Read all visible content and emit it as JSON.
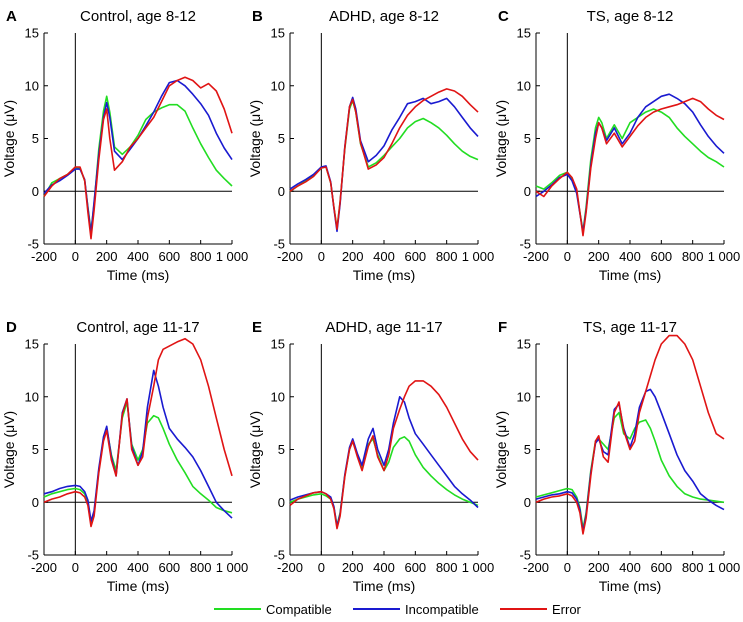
{
  "colors": {
    "Compatible": "#22dd22",
    "Incompatible": "#1a1ad0",
    "Error": "#e01414"
  },
  "legend": [
    {
      "label": "Compatible",
      "color": "#22dd22"
    },
    {
      "label": "Incompatible",
      "color": "#1a1ad0"
    },
    {
      "label": "Error",
      "color": "#e01414"
    }
  ],
  "chart_data": [
    {
      "type": "line",
      "letter": "A",
      "title": "Control, age 8-12",
      "xlabel": "Time (ms)",
      "ylabel": "Voltage (μV)",
      "xlim": [
        -200,
        1000
      ],
      "ylim": [
        -5,
        15
      ],
      "xticks": [
        "-200",
        "0",
        "200",
        "400",
        "600",
        "800",
        "1 000"
      ],
      "yticks": [
        "-5",
        "0",
        "5",
        "10",
        "15"
      ],
      "x": [
        -200,
        -150,
        -100,
        -50,
        0,
        30,
        60,
        80,
        100,
        120,
        150,
        180,
        200,
        220,
        250,
        300,
        350,
        400,
        450,
        500,
        550,
        600,
        650,
        700,
        750,
        800,
        850,
        900,
        950,
        1000
      ],
      "series": [
        {
          "name": "Compatible",
          "values": [
            -0.5,
            0.8,
            1.2,
            1.6,
            2.2,
            2.2,
            1.0,
            -1.5,
            -3.8,
            -1.2,
            4.0,
            7.6,
            9.0,
            7.5,
            4.2,
            3.5,
            4.2,
            5.3,
            6.8,
            7.5,
            7.9,
            8.2,
            8.2,
            7.6,
            6.0,
            4.5,
            3.2,
            2.0,
            1.2,
            0.5
          ]
        },
        {
          "name": "Incompatible",
          "values": [
            -0.2,
            0.6,
            1.0,
            1.5,
            2.1,
            2.1,
            1.1,
            -1.6,
            -4.0,
            -1.0,
            3.5,
            7.0,
            8.4,
            7.0,
            3.8,
            3.0,
            4.0,
            5.0,
            6.2,
            7.5,
            9.0,
            10.3,
            10.5,
            10.0,
            9.2,
            8.3,
            7.2,
            5.5,
            4.1,
            3.0
          ]
        },
        {
          "name": "Error",
          "values": [
            -0.5,
            0.5,
            1.2,
            1.6,
            2.3,
            2.3,
            1.0,
            -2.0,
            -4.5,
            -1.8,
            3.0,
            6.8,
            7.8,
            5.0,
            2.0,
            2.8,
            4.2,
            5.0,
            6.0,
            7.0,
            8.5,
            10.0,
            10.5,
            10.8,
            10.5,
            9.8,
            10.2,
            9.5,
            7.8,
            5.5
          ]
        }
      ]
    },
    {
      "type": "line",
      "letter": "B",
      "title": "ADHD, age 8-12",
      "xlabel": "Time (ms)",
      "ylabel": "Voltage (μV)",
      "xlim": [
        -200,
        1000
      ],
      "ylim": [
        -5,
        15
      ],
      "xticks": [
        "-200",
        "0",
        "200",
        "400",
        "600",
        "800",
        "1 000"
      ],
      "yticks": [
        "-5",
        "0",
        "5",
        "10",
        "15"
      ],
      "x": [
        -200,
        -150,
        -100,
        -50,
        0,
        30,
        60,
        80,
        100,
        120,
        150,
        180,
        200,
        220,
        250,
        300,
        350,
        400,
        450,
        500,
        550,
        600,
        650,
        700,
        750,
        800,
        850,
        900,
        950,
        1000
      ],
      "series": [
        {
          "name": "Compatible",
          "values": [
            0.0,
            0.5,
            1.0,
            1.5,
            2.2,
            2.3,
            0.8,
            -1.5,
            -3.5,
            -1.0,
            4.0,
            7.8,
            8.6,
            7.5,
            4.5,
            2.3,
            2.7,
            3.4,
            4.2,
            5.0,
            6.0,
            6.6,
            6.9,
            6.5,
            6.0,
            5.3,
            4.5,
            3.8,
            3.3,
            3.0
          ]
        },
        {
          "name": "Incompatible",
          "values": [
            0.2,
            0.7,
            1.1,
            1.6,
            2.3,
            2.4,
            0.9,
            -1.6,
            -3.8,
            -1.2,
            4.2,
            8.0,
            8.9,
            7.8,
            4.8,
            2.8,
            3.4,
            4.3,
            5.8,
            7.0,
            8.3,
            8.5,
            8.8,
            8.3,
            8.5,
            8.8,
            8.0,
            7.0,
            6.0,
            5.2
          ]
        },
        {
          "name": "Error",
          "values": [
            0.0,
            0.5,
            0.9,
            1.4,
            2.2,
            2.3,
            0.8,
            -1.5,
            -3.6,
            -1.0,
            4.1,
            8.0,
            8.7,
            7.5,
            4.6,
            2.1,
            2.5,
            3.2,
            4.5,
            6.0,
            7.2,
            8.0,
            8.6,
            9.0,
            9.4,
            9.7,
            9.5,
            9.0,
            8.2,
            7.5
          ]
        }
      ]
    },
    {
      "type": "line",
      "letter": "C",
      "title": "TS, age 8-12",
      "xlabel": "Time (ms)",
      "ylabel": "Voltage (μV)",
      "xlim": [
        -200,
        1000
      ],
      "ylim": [
        -5,
        15
      ],
      "xticks": [
        "-200",
        "0",
        "200",
        "400",
        "600",
        "800",
        "1 000"
      ],
      "yticks": [
        "-5",
        "0",
        "5",
        "10",
        "15"
      ],
      "x": [
        -200,
        -150,
        -100,
        -50,
        0,
        30,
        60,
        80,
        100,
        120,
        150,
        180,
        200,
        220,
        250,
        300,
        350,
        400,
        450,
        500,
        550,
        600,
        650,
        700,
        750,
        800,
        850,
        900,
        950,
        1000
      ],
      "series": [
        {
          "name": "Compatible",
          "values": [
            0.5,
            0.2,
            0.8,
            1.5,
            1.8,
            1.2,
            0.0,
            -2.0,
            -3.8,
            -1.5,
            3.0,
            6.0,
            7.0,
            6.5,
            5.0,
            6.3,
            5.0,
            6.5,
            7.0,
            7.5,
            7.8,
            7.5,
            7.0,
            6.0,
            5.2,
            4.5,
            3.8,
            3.2,
            2.8,
            2.3
          ]
        },
        {
          "name": "Incompatible",
          "values": [
            -0.5,
            0.0,
            0.6,
            1.3,
            1.6,
            1.0,
            -0.2,
            -2.1,
            -3.9,
            -1.8,
            2.5,
            5.5,
            6.5,
            6.0,
            4.8,
            6.0,
            4.5,
            5.5,
            7.0,
            8.0,
            8.5,
            9.0,
            9.2,
            8.8,
            8.3,
            7.5,
            6.3,
            5.2,
            4.3,
            3.6
          ]
        },
        {
          "name": "Error",
          "values": [
            0.0,
            -0.5,
            0.5,
            1.2,
            1.8,
            1.3,
            0.2,
            -2.0,
            -4.2,
            -2.0,
            2.2,
            5.0,
            6.5,
            6.0,
            4.5,
            5.5,
            4.2,
            5.2,
            6.2,
            7.0,
            7.5,
            7.8,
            8.0,
            8.2,
            8.5,
            8.8,
            8.5,
            7.8,
            7.2,
            6.8
          ]
        }
      ]
    },
    {
      "type": "line",
      "letter": "D",
      "title": "Control, age 11-17",
      "xlabel": "Time (ms)",
      "ylabel": "Voltage (μV)",
      "xlim": [
        -200,
        1000
      ],
      "ylim": [
        -5,
        15
      ],
      "xticks": [
        "-200",
        "0",
        "200",
        "400",
        "600",
        "800",
        "1 000"
      ],
      "yticks": [
        "-5",
        "0",
        "5",
        "10",
        "15"
      ],
      "x": [
        -200,
        -150,
        -100,
        -50,
        0,
        30,
        60,
        80,
        100,
        120,
        150,
        180,
        200,
        230,
        260,
        300,
        330,
        360,
        400,
        430,
        460,
        500,
        530,
        560,
        600,
        650,
        700,
        750,
        800,
        850,
        900,
        950,
        1000
      ],
      "series": [
        {
          "name": "Compatible",
          "values": [
            0.5,
            0.8,
            1.0,
            1.2,
            1.3,
            1.2,
            0.8,
            0.0,
            -2.0,
            -1.0,
            3.0,
            6.0,
            7.0,
            4.5,
            3.0,
            8.0,
            9.5,
            5.5,
            4.0,
            5.0,
            7.5,
            8.2,
            8.0,
            7.0,
            5.5,
            4.0,
            2.8,
            1.5,
            0.8,
            0.2,
            -0.5,
            -0.8,
            -1.0
          ]
        },
        {
          "name": "Incompatible",
          "values": [
            0.8,
            1.0,
            1.3,
            1.5,
            1.6,
            1.5,
            1.0,
            0.2,
            -1.8,
            -0.8,
            3.2,
            6.2,
            7.2,
            4.3,
            2.5,
            8.5,
            9.8,
            5.3,
            3.5,
            4.8,
            9.0,
            12.5,
            11.0,
            9.0,
            7.0,
            6.0,
            5.2,
            4.3,
            3.0,
            1.5,
            0.0,
            -0.8,
            -1.5
          ]
        },
        {
          "name": "Error",
          "values": [
            0.0,
            0.3,
            0.5,
            0.8,
            1.0,
            0.9,
            0.5,
            -0.3,
            -2.3,
            -1.3,
            2.8,
            5.8,
            6.8,
            4.0,
            2.5,
            8.3,
            9.8,
            5.0,
            3.5,
            4.3,
            8.0,
            11.0,
            13.5,
            14.5,
            14.8,
            15.2,
            15.5,
            15.0,
            13.5,
            11.0,
            8.0,
            5.0,
            2.5
          ]
        }
      ]
    },
    {
      "type": "line",
      "letter": "E",
      "title": "ADHD, age 11-17",
      "xlabel": "Time (ms)",
      "ylabel": "Voltage (μV)",
      "xlim": [
        -200,
        1000
      ],
      "ylim": [
        -5,
        15
      ],
      "xticks": [
        "-200",
        "0",
        "200",
        "400",
        "600",
        "800",
        "1 000"
      ],
      "yticks": [
        "-5",
        "0",
        "5",
        "10",
        "15"
      ],
      "x": [
        -200,
        -150,
        -100,
        -50,
        0,
        30,
        60,
        80,
        100,
        120,
        150,
        180,
        200,
        230,
        260,
        300,
        330,
        360,
        400,
        430,
        460,
        500,
        530,
        560,
        600,
        650,
        700,
        750,
        800,
        850,
        900,
        950,
        1000
      ],
      "series": [
        {
          "name": "Compatible",
          "values": [
            0.0,
            0.3,
            0.5,
            0.7,
            0.8,
            0.6,
            0.3,
            -0.5,
            -2.2,
            -1.0,
            2.5,
            5.0,
            5.8,
            4.5,
            3.3,
            5.5,
            6.0,
            4.5,
            3.0,
            3.8,
            5.2,
            6.0,
            6.2,
            5.8,
            4.5,
            3.3,
            2.5,
            1.8,
            1.2,
            0.7,
            0.3,
            0.0,
            -0.3
          ]
        },
        {
          "name": "Incompatible",
          "values": [
            0.2,
            0.5,
            0.7,
            0.9,
            1.0,
            0.8,
            0.5,
            -0.4,
            -2.3,
            -1.1,
            2.6,
            5.2,
            6.0,
            4.6,
            3.5,
            6.0,
            7.0,
            5.0,
            3.5,
            5.0,
            7.5,
            10.0,
            9.5,
            8.0,
            6.5,
            5.5,
            4.5,
            3.5,
            2.5,
            1.5,
            0.8,
            0.2,
            -0.5
          ]
        },
        {
          "name": "Error",
          "values": [
            -0.3,
            0.3,
            0.6,
            0.9,
            1.0,
            0.8,
            0.3,
            -0.6,
            -2.5,
            -1.3,
            2.4,
            5.0,
            5.8,
            4.3,
            3.0,
            5.3,
            6.3,
            4.3,
            3.0,
            4.5,
            7.0,
            8.8,
            10.0,
            11.0,
            11.5,
            11.5,
            11.0,
            10.2,
            9.0,
            7.5,
            6.0,
            4.8,
            4.0
          ]
        }
      ]
    },
    {
      "type": "line",
      "letter": "F",
      "title": "TS, age 11-17",
      "xlabel": "Time (ms)",
      "ylabel": "Voltage (μV)",
      "xlim": [
        -200,
        1000
      ],
      "ylim": [
        -5,
        15
      ],
      "xticks": [
        "-200",
        "0",
        "200",
        "400",
        "600",
        "800",
        "1 000"
      ],
      "yticks": [
        "-5",
        "0",
        "5",
        "10",
        "15"
      ],
      "x": [
        -200,
        -150,
        -100,
        -50,
        0,
        30,
        60,
        80,
        100,
        120,
        150,
        180,
        200,
        230,
        260,
        300,
        330,
        360,
        400,
        430,
        460,
        500,
        530,
        560,
        600,
        650,
        700,
        750,
        800,
        850,
        900,
        950,
        1000
      ],
      "series": [
        {
          "name": "Compatible",
          "values": [
            0.5,
            0.7,
            0.9,
            1.1,
            1.3,
            1.2,
            0.5,
            -0.5,
            -2.5,
            -1.0,
            3.0,
            5.8,
            6.0,
            5.5,
            5.0,
            8.0,
            8.5,
            6.5,
            6.0,
            7.0,
            7.6,
            7.8,
            7.0,
            5.8,
            4.0,
            2.5,
            1.5,
            0.8,
            0.5,
            0.3,
            0.2,
            0.1,
            0.0
          ]
        },
        {
          "name": "Incompatible",
          "values": [
            0.3,
            0.5,
            0.7,
            0.8,
            1.0,
            0.9,
            0.3,
            -0.7,
            -2.8,
            -1.2,
            2.8,
            5.6,
            6.0,
            4.8,
            4.5,
            8.8,
            9.3,
            7.0,
            5.2,
            6.5,
            9.0,
            10.5,
            10.7,
            10.0,
            8.5,
            6.5,
            4.5,
            3.0,
            2.0,
            0.8,
            0.2,
            -0.3,
            -0.7
          ]
        },
        {
          "name": "Error",
          "values": [
            0.0,
            0.3,
            0.5,
            0.6,
            0.8,
            0.6,
            0.0,
            -1.0,
            -3.0,
            -1.5,
            2.5,
            5.8,
            6.3,
            4.3,
            3.8,
            8.5,
            9.5,
            6.8,
            5.0,
            5.8,
            8.5,
            10.5,
            12.0,
            13.5,
            15.0,
            15.8,
            15.8,
            15.0,
            13.5,
            11.0,
            8.5,
            6.5,
            6.0
          ]
        }
      ]
    }
  ]
}
